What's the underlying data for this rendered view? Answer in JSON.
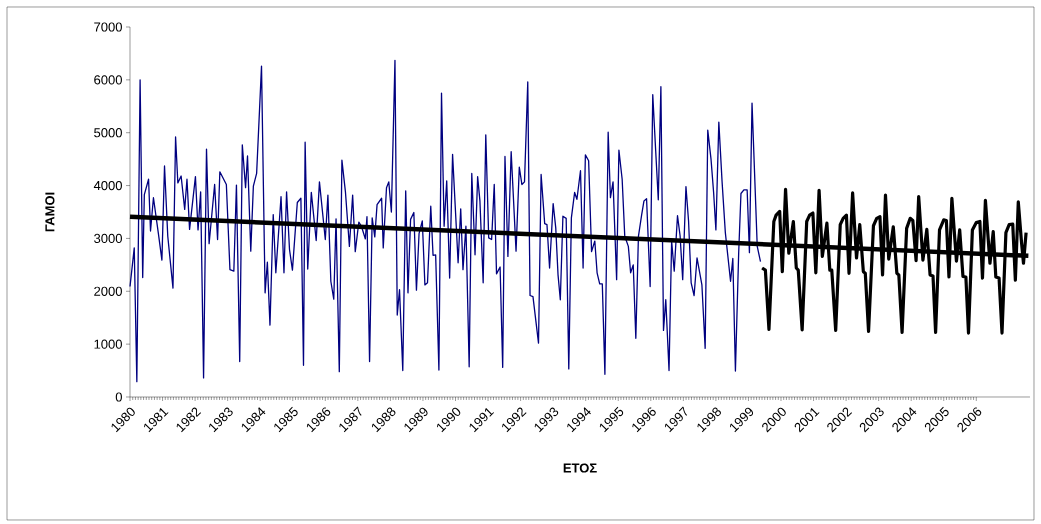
{
  "chart_data": {
    "type": "line",
    "xlabel": "ΕΤΟΣ",
    "ylabel": "ΓΑΜΟΙ",
    "xlim": [
      1980,
      2007.65
    ],
    "ylim": [
      0,
      7000
    ],
    "xticks": [
      1980,
      1981,
      1982,
      1983,
      1984,
      1985,
      1986,
      1987,
      1988,
      1989,
      1990,
      1991,
      1992,
      1993,
      1994,
      1995,
      1996,
      1997,
      1998,
      1999,
      2000,
      2001,
      2002,
      2003,
      2004,
      2005,
      2006
    ],
    "yticks": [
      0,
      1000,
      2000,
      3000,
      4000,
      5000,
      6000,
      7000
    ],
    "series": [
      {
        "color": "#000080",
        "x": [
          1980.0,
          1980.13,
          1980.21,
          1980.31,
          1980.39,
          1980.44,
          1980.57,
          1980.63,
          1980.72,
          1980.87,
          1980.98,
          1981.06,
          1981.16,
          1981.32,
          1981.4,
          1981.47,
          1981.57,
          1981.68,
          1981.75,
          1981.83,
          1982.01,
          1982.09,
          1982.17,
          1982.26,
          1982.35,
          1982.43,
          1982.6,
          1982.69,
          1982.76,
          1982.96,
          1983.07,
          1983.19,
          1983.27,
          1983.37,
          1983.45,
          1983.55,
          1983.61,
          1983.71,
          1983.79,
          1983.89,
          1984.04,
          1984.15,
          1984.22,
          1984.3,
          1984.4,
          1984.48,
          1984.64,
          1984.73,
          1984.81,
          1984.9,
          1984.99,
          1985.14,
          1985.25,
          1985.33,
          1985.38,
          1985.46,
          1985.57,
          1985.72,
          1985.82,
          1986.0,
          1986.08,
          1986.17,
          1986.26,
          1986.33,
          1986.43,
          1986.51,
          1986.62,
          1986.74,
          1986.84,
          1986.92,
          1987.03,
          1987.11,
          1987.23,
          1987.28,
          1987.36,
          1987.44,
          1987.52,
          1987.59,
          1987.73,
          1987.78,
          1987.88,
          1987.95,
          1988.03,
          1988.14,
          1988.21,
          1988.28,
          1988.38,
          1988.47,
          1988.54,
          1988.62,
          1988.72,
          1988.8,
          1988.88,
          1988.98,
          1989.06,
          1989.14,
          1989.24,
          1989.31,
          1989.39,
          1989.49,
          1989.57,
          1989.65,
          1989.73,
          1989.82,
          1989.91,
          1990.08,
          1990.16,
          1990.23,
          1990.32,
          1990.42,
          1990.5,
          1990.6,
          1990.68,
          1990.75,
          1990.85,
          1990.93,
          1991.02,
          1991.11,
          1991.19,
          1991.26,
          1991.37,
          1991.45,
          1991.52,
          1991.61,
          1991.71,
          1991.86,
          1991.96,
          1992.04,
          1992.12,
          1992.22,
          1992.29,
          1992.38,
          1992.55,
          1992.63,
          1992.74,
          1992.81,
          1992.89,
          1993.0,
          1993.08,
          1993.15,
          1993.22,
          1993.3,
          1993.4,
          1993.48,
          1993.56,
          1993.66,
          1993.73,
          1993.84,
          1993.92,
          1993.99,
          1994.09,
          1994.18,
          1994.28,
          1994.35,
          1994.43,
          1994.51,
          1994.59,
          1994.69,
          1994.76,
          1994.84,
          1994.95,
          1995.02,
          1995.12,
          1995.2,
          1995.31,
          1995.38,
          1995.46,
          1995.54,
          1995.62,
          1995.72,
          1995.79,
          1995.87,
          1995.98,
          1996.06,
          1996.15,
          1996.23,
          1996.31,
          1996.39,
          1996.46,
          1996.56,
          1996.64,
          1996.72,
          1996.82,
          1996.9,
          1996.98,
          1997.08,
          1997.16,
          1997.24,
          1997.33,
          1997.42,
          1997.57,
          1997.67,
          1997.75,
          1997.85,
          1997.93,
          1998.0,
          1998.09,
          1998.19,
          1998.29,
          1998.45,
          1998.52,
          1998.6,
          1998.7,
          1998.77,
          1998.86,
          1998.96,
          1999.03,
          1999.11,
          1999.27,
          1999.37
        ],
        "values": [
          2090,
          2820,
          290,
          6000,
          2260,
          3830,
          4120,
          3140,
          3770,
          3100,
          2590,
          4370,
          3040,
          2060,
          4920,
          4050,
          4180,
          3550,
          4120,
          3170,
          4170,
          3160,
          3880,
          360,
          4690,
          2900,
          4020,
          2980,
          4260,
          4020,
          2410,
          2380,
          4010,
          670,
          4770,
          3960,
          4560,
          2760,
          3990,
          4230,
          6260,
          1970,
          2550,
          1360,
          3450,
          2350,
          3790,
          2350,
          3880,
          2790,
          2400,
          3680,
          3760,
          600,
          4820,
          2420,
          3870,
          2960,
          4070,
          2980,
          3820,
          2190,
          1850,
          3370,
          480,
          4480,
          3870,
          2850,
          3820,
          2750,
          3310,
          3230,
          2990,
          3410,
          670,
          3390,
          3030,
          3640,
          3760,
          2820,
          3960,
          4070,
          3500,
          6370,
          1550,
          2030,
          500,
          3900,
          1970,
          3360,
          3490,
          2020,
          3090,
          3330,
          2120,
          2160,
          3610,
          2680,
          2690,
          510,
          5750,
          3230,
          4090,
          2250,
          4590,
          2540,
          3560,
          2410,
          3230,
          570,
          4230,
          2690,
          4170,
          3710,
          2160,
          4960,
          3010,
          2980,
          4020,
          2330,
          2460,
          560,
          4550,
          2660,
          4640,
          2760,
          4350,
          4020,
          4070,
          5960,
          1920,
          1900,
          1020,
          4210,
          3280,
          3260,
          2440,
          3660,
          3200,
          2310,
          1840,
          3420,
          3380,
          530,
          3390,
          3870,
          3740,
          4280,
          2440,
          4580,
          4470,
          2750,
          2950,
          2350,
          2140,
          2140,
          430,
          5010,
          3770,
          4070,
          2220,
          4670,
          4120,
          3040,
          2850,
          2350,
          2500,
          1110,
          3040,
          3450,
          3710,
          3750,
          2090,
          5720,
          4660,
          3730,
          5870,
          1260,
          1840,
          500,
          2950,
          2380,
          3430,
          3050,
          2220,
          3980,
          3330,
          2160,
          1920,
          2630,
          2120,
          920,
          5050,
          4500,
          3870,
          3160,
          5200,
          4070,
          3110,
          2190,
          2620,
          490,
          2730,
          3850,
          3920,
          3920,
          2730,
          5560,
          2850,
          2560
        ]
      },
      {
        "color": "#000000",
        "x": [
          1980,
          2007.6
        ],
        "values": [
          3410,
          2670
        ]
      },
      {
        "color": "#000000",
        "x": [
          1999.42,
          1999.52,
          1999.63,
          1999.78,
          1999.85,
          1999.96,
          2000.04,
          2000.14,
          2000.24,
          2000.38,
          2000.47,
          2000.53,
          2000.65,
          2000.79,
          2000.88,
          2000.98,
          2001.07,
          2001.17,
          2001.27,
          2001.41,
          2001.5,
          2001.56,
          2001.68,
          2001.82,
          2001.91,
          2002.01,
          2002.09,
          2002.2,
          2002.32,
          2002.42,
          2002.53,
          2002.59,
          2002.69,
          2002.84,
          2002.94,
          2003.04,
          2003.12,
          2003.21,
          2003.31,
          2003.45,
          2003.56,
          2003.62,
          2003.72,
          2003.86,
          2003.97,
          2004.05,
          2004.15,
          2004.23,
          2004.36,
          2004.48,
          2004.58,
          2004.67,
          2004.75,
          2004.87,
          2005.0,
          2005.08,
          2005.16,
          2005.25,
          2005.39,
          2005.49,
          2005.59,
          2005.68,
          2005.76,
          2005.88,
          2006.0,
          2006.11,
          2006.19,
          2006.28,
          2006.42,
          2006.52,
          2006.6,
          2006.7,
          2006.79,
          2006.91,
          2007.01,
          2007.12,
          2007.2,
          2007.29,
          2007.39,
          2007.45,
          2007.53
        ],
        "values": [
          2440,
          2400,
          1280,
          3320,
          3440,
          3510,
          2370,
          3930,
          2720,
          3320,
          2440,
          2400,
          1270,
          3320,
          3440,
          3480,
          2350,
          3910,
          2660,
          3290,
          2400,
          2400,
          1260,
          3260,
          3380,
          3440,
          2340,
          3860,
          2630,
          3260,
          2370,
          2340,
          1240,
          3240,
          3380,
          3410,
          2310,
          3820,
          2610,
          3220,
          2340,
          2310,
          1220,
          3190,
          3380,
          3340,
          2580,
          3790,
          2590,
          3170,
          2310,
          2290,
          1220,
          3160,
          3350,
          3340,
          2270,
          3760,
          2570,
          3160,
          2280,
          2270,
          1210,
          3160,
          3300,
          3320,
          2250,
          3720,
          2530,
          3130,
          2270,
          2250,
          1210,
          3110,
          3260,
          3270,
          2210,
          3690,
          2920,
          2530,
          3110
        ]
      }
    ]
  }
}
